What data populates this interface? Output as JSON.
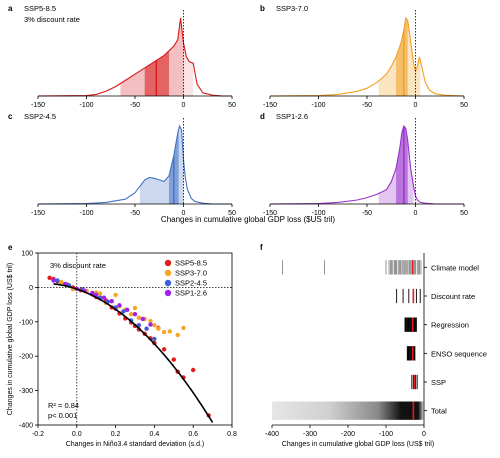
{
  "chart_data": [
    {
      "panel": "a",
      "type": "area",
      "title": "SSP5-8.5",
      "subtitle": "3% discount rate",
      "color": "#d7191c",
      "xlim": [
        -150,
        50
      ],
      "xticks": [
        -150,
        -100,
        -50,
        0,
        50
      ],
      "x": [
        -150,
        -100,
        -90,
        -80,
        -70,
        -60,
        -50,
        -40,
        -30,
        -20,
        -15,
        -10,
        -6,
        -3,
        0,
        3,
        6,
        10,
        14,
        20,
        30,
        40,
        50
      ],
      "y": [
        0,
        0.005,
        0.02,
        0.06,
        0.12,
        0.2,
        0.28,
        0.36,
        0.44,
        0.52,
        0.58,
        0.64,
        0.72,
        1.0,
        0.68,
        0.5,
        0.44,
        0.42,
        0.15,
        0.04,
        0.01,
        0,
        0
      ],
      "bands": {
        "outer": [
          -65,
          0
        ],
        "inner": [
          -40,
          -15
        ],
        "inner_right": [
          0,
          10
        ],
        "median": -28
      }
    },
    {
      "panel": "b",
      "type": "area",
      "title": "SSP3-7.0",
      "color": "#f0a020",
      "xlim": [
        -150,
        50
      ],
      "xticks": [
        -150,
        -100,
        -50,
        0,
        50
      ],
      "x": [
        -150,
        -100,
        -80,
        -60,
        -50,
        -40,
        -30,
        -25,
        -20,
        -15,
        -12,
        -10,
        -8,
        -5,
        -2,
        0,
        2,
        4,
        6,
        10,
        14,
        20,
        30,
        50
      ],
      "y": [
        0,
        0.005,
        0.02,
        0.06,
        0.1,
        0.17,
        0.28,
        0.38,
        0.5,
        0.68,
        0.85,
        1.0,
        0.97,
        0.7,
        0.42,
        0.32,
        0.38,
        0.5,
        0.4,
        0.18,
        0.08,
        0.03,
        0.01,
        0
      ],
      "bands": {
        "outer": [
          -38,
          5
        ],
        "inner": [
          -20,
          -8
        ],
        "median": -12
      }
    },
    {
      "panel": "c",
      "type": "area",
      "title": "SSP2-4.5",
      "color": "#4472c4",
      "xlim": [
        -150,
        50
      ],
      "xticks": [
        -150,
        -100,
        -50,
        0,
        50
      ],
      "x": [
        -150,
        -100,
        -80,
        -60,
        -50,
        -45,
        -40,
        -35,
        -30,
        -25,
        -20,
        -15,
        -10,
        -6,
        -4,
        -2,
        0,
        2,
        4,
        8,
        12,
        20,
        30,
        50
      ],
      "y": [
        0,
        0.005,
        0.02,
        0.06,
        0.14,
        0.22,
        0.3,
        0.33,
        0.32,
        0.3,
        0.28,
        0.35,
        0.6,
        0.88,
        0.97,
        0.92,
        0.55,
        0.32,
        0.18,
        0.07,
        0.03,
        0.01,
        0,
        0
      ],
      "bands": {
        "outer": [
          -45,
          0
        ],
        "inner": [
          -15,
          -5
        ],
        "median": -10
      }
    },
    {
      "panel": "d",
      "type": "area",
      "title": "SSP1-2.6",
      "color": "#9932cc",
      "xlim": [
        -150,
        50
      ],
      "xticks": [
        -150,
        -100,
        -50,
        0,
        50
      ],
      "x": [
        -150,
        -100,
        -80,
        -60,
        -50,
        -40,
        -30,
        -25,
        -20,
        -16,
        -14,
        -12,
        -10,
        -8,
        -5,
        -2,
        0,
        2,
        5,
        10,
        20,
        50
      ],
      "y": [
        0,
        0.005,
        0.02,
        0.05,
        0.08,
        0.12,
        0.18,
        0.28,
        0.45,
        0.72,
        0.9,
        0.98,
        0.95,
        0.8,
        0.45,
        0.22,
        0.1,
        0.05,
        0.02,
        0.01,
        0,
        0
      ],
      "bands": {
        "outer": [
          -38,
          -2
        ],
        "inner": [
          -20,
          -8
        ],
        "median": -12
      }
    },
    {
      "panel": "e",
      "type": "scatter",
      "annotation": "3% discount rate",
      "xlabel": "Changes in Niño3.4 standard deviation (s.d.)",
      "ylabel": "Changes in cumulative global GDP loss (US$ tril)",
      "xlim": [
        -0.2,
        0.8
      ],
      "ylim": [
        -400,
        100
      ],
      "xticks": [
        -0.2,
        0.0,
        0.2,
        0.4,
        0.6,
        0.8
      ],
      "yticks": [
        100,
        0,
        -100,
        -200,
        -300,
        -400
      ],
      "r2": "R² = 0.84",
      "p": "p< 0.001",
      "fit": {
        "type": "quadratic",
        "a": -520,
        "b": -190,
        "c": -5,
        "x_range": [
          -0.12,
          0.7
        ]
      },
      "series": [
        {
          "name": "SSP5-8.5",
          "color": "#e41a1c",
          "points": [
            [
              -0.14,
              28
            ],
            [
              -0.12,
              24
            ],
            [
              -0.1,
              18
            ],
            [
              -0.08,
              15
            ],
            [
              -0.05,
              8
            ],
            [
              -0.02,
              0
            ],
            [
              0.02,
              -8
            ],
            [
              0.05,
              -12
            ],
            [
              0.08,
              -20
            ],
            [
              0.1,
              -28
            ],
            [
              0.12,
              -32
            ],
            [
              0.15,
              -38
            ],
            [
              0.18,
              -58
            ],
            [
              0.2,
              -62
            ],
            [
              0.22,
              -76
            ],
            [
              0.25,
              -90
            ],
            [
              0.28,
              -102
            ],
            [
              0.3,
              -112
            ],
            [
              0.32,
              -122
            ],
            [
              0.35,
              -135
            ],
            [
              0.38,
              -148
            ],
            [
              0.4,
              -162
            ],
            [
              0.42,
              -118
            ],
            [
              0.45,
              -180
            ],
            [
              0.5,
              -210
            ],
            [
              0.52,
              -245
            ],
            [
              0.55,
              -262
            ],
            [
              0.6,
              -240
            ],
            [
              0.68,
              -372
            ]
          ]
        },
        {
          "name": "SSP3-7.0",
          "color": "#f5a623",
          "points": [
            [
              -0.08,
              16
            ],
            [
              -0.02,
              -5
            ],
            [
              0.05,
              -10
            ],
            [
              0.1,
              -15
            ],
            [
              0.12,
              -18
            ],
            [
              0.15,
              -45
            ],
            [
              0.18,
              -40
            ],
            [
              0.2,
              -22
            ],
            [
              0.22,
              -55
            ],
            [
              0.25,
              -65
            ],
            [
              0.28,
              -78
            ],
            [
              0.3,
              -60
            ],
            [
              0.32,
              -88
            ],
            [
              0.35,
              -92
            ],
            [
              0.38,
              -98
            ],
            [
              0.4,
              -110
            ],
            [
              0.42,
              -120
            ],
            [
              0.45,
              -130
            ],
            [
              0.48,
              -128
            ],
            [
              0.52,
              -138
            ],
            [
              0.55,
              -118
            ]
          ]
        },
        {
          "name": "SSP2-4.5",
          "color": "#3b5fd9",
          "points": [
            [
              -0.1,
              20
            ],
            [
              -0.04,
              6
            ],
            [
              0.03,
              -6
            ],
            [
              0.08,
              -18
            ],
            [
              0.12,
              -30
            ],
            [
              0.16,
              -42
            ],
            [
              0.2,
              -58
            ],
            [
              0.24,
              -70
            ],
            [
              0.28,
              -96
            ],
            [
              0.32,
              -110
            ],
            [
              0.36,
              -120
            ],
            [
              0.4,
              -150
            ]
          ]
        },
        {
          "name": "SSP1-2.6",
          "color": "#a020f0",
          "points": [
            [
              -0.12,
              20
            ],
            [
              -0.06,
              10
            ],
            [
              0.0,
              -4
            ],
            [
              0.04,
              -10
            ],
            [
              0.08,
              -16
            ],
            [
              0.1,
              -22
            ],
            [
              0.14,
              -30
            ],
            [
              0.18,
              -40
            ],
            [
              0.22,
              -52
            ],
            [
              0.26,
              -65
            ],
            [
              0.3,
              -78
            ],
            [
              0.34,
              -92
            ],
            [
              0.38,
              -108
            ]
          ]
        }
      ]
    },
    {
      "panel": "f",
      "type": "heatmap",
      "xlabel": "Changes in cumulative global GDP loss (US$ tril)",
      "xlim": [
        -400,
        0
      ],
      "xticks": [
        -400,
        -300,
        -200,
        -100,
        0
      ],
      "rows": [
        {
          "label": "Climate model",
          "red": -30,
          "lines": [
            -372,
            -262,
            -100,
            -92,
            -88,
            -85,
            -82,
            -78,
            -75,
            -72,
            -68,
            -65,
            -62,
            -58,
            -55,
            -52,
            -48,
            -45,
            -42,
            -38,
            -35,
            -32,
            -28,
            -25,
            -22,
            -18,
            -15,
            -12,
            -8
          ]
        },
        {
          "label": "Discount rate",
          "red": -28,
          "lines": [
            -72,
            -55,
            -40,
            -20,
            -10
          ]
        },
        {
          "label": "Regression",
          "red": -30,
          "lines": [
            -50,
            -48,
            -46,
            -44,
            -42,
            -40,
            -38,
            -36,
            -34,
            -32,
            -30,
            -28,
            -26,
            -24,
            -22,
            -20
          ]
        },
        {
          "label": "ENSO sequence",
          "red": -30,
          "lines": [
            -44,
            -42,
            -40,
            -38,
            -36,
            -34,
            -32,
            -30,
            -28,
            -26,
            -24
          ]
        },
        {
          "label": "SSP",
          "red": -25,
          "lines": [
            -32,
            -28,
            -22,
            -18
          ]
        },
        {
          "label": "Total",
          "red": -28,
          "gradient": {
            "from": -400,
            "peak": [
              -60,
              -15
            ],
            "to": 0
          }
        }
      ]
    }
  ],
  "figure": {
    "panel_labels": [
      "a",
      "b",
      "c",
      "d",
      "e",
      "f"
    ],
    "shared_xlabel_top": "Changes in cumulative global GDP loss ($US tril)"
  }
}
